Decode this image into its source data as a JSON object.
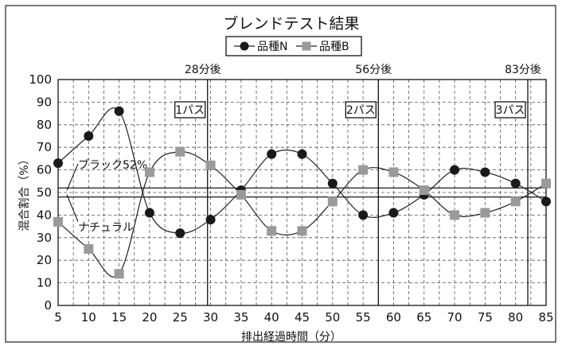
{
  "chart_data": {
    "type": "line",
    "title": "ブレンドテスト結果",
    "xlabel": "排出経過時間（分）",
    "ylabel": "混合割合（%）",
    "x": [
      5,
      10,
      15,
      20,
      25,
      30,
      35,
      40,
      45,
      50,
      55,
      60,
      65,
      70,
      75,
      80,
      85
    ],
    "xlim": [
      5,
      85
    ],
    "ylim": [
      0,
      100
    ],
    "x_ticks": [
      "5",
      "10",
      "15",
      "20",
      "25",
      "30",
      "35",
      "40",
      "45",
      "50",
      "55",
      "60",
      "65",
      "70",
      "75",
      "80",
      "85"
    ],
    "y_ticks": [
      "0",
      "10",
      "20",
      "30",
      "40",
      "50",
      "60",
      "70",
      "80",
      "90",
      "100"
    ],
    "grid": true,
    "legend_position": "top-center",
    "series": [
      {
        "name": "品種N",
        "marker": "circle",
        "color": "#1a1a1a",
        "values": [
          63,
          75,
          86,
          41,
          32,
          38,
          51,
          67,
          67,
          54,
          40,
          41,
          49,
          60,
          59,
          54,
          46
        ]
      },
      {
        "name": "品種B",
        "marker": "square",
        "color": "#9a9a9a",
        "values": [
          37,
          25,
          14,
          59,
          68,
          62,
          49,
          33,
          33,
          46,
          60,
          59,
          51,
          40,
          41,
          46,
          54
        ]
      }
    ],
    "reference_lines": [
      {
        "label": "ブラック52%",
        "y": 52
      },
      {
        "label": "ナチュラル",
        "y": 48
      }
    ],
    "time_markers": [
      {
        "label": "28分後",
        "x": 29.5,
        "pass_label": "1パス"
      },
      {
        "label": "56分後",
        "x": 57.5,
        "pass_label": "2パス"
      },
      {
        "label": "83分後",
        "x": 82.0,
        "pass_label": "3パス"
      }
    ]
  }
}
